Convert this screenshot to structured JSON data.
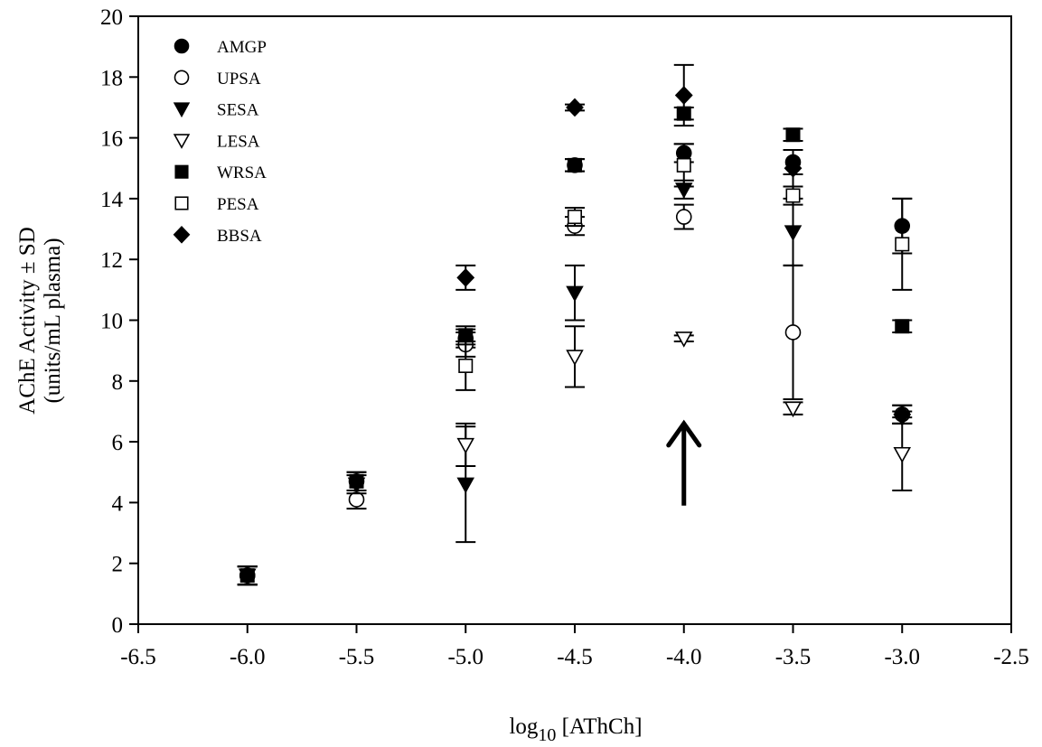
{
  "chart_data": {
    "type": "scatter",
    "title": "",
    "xlabel": {
      "prefix": "log",
      "subscript": "10",
      "suffix": " [AThCh]"
    },
    "ylabel": [
      "AChE Activity ± SD",
      "(units/mL plasma)"
    ],
    "xlim": [
      -6.5,
      -2.5
    ],
    "ylim": [
      0,
      20
    ],
    "xticks": [
      -6.5,
      -6.0,
      -5.5,
      -5.0,
      -4.5,
      -4.0,
      -3.5,
      -3.0,
      -2.5
    ],
    "xtick_labels": [
      "-6.5",
      "-6.0",
      "-5.5",
      "-5.0",
      "-4.5",
      "-4.0",
      "-3.5",
      "-3.0",
      "-2.5"
    ],
    "yticks": [
      0,
      2,
      4,
      6,
      8,
      10,
      12,
      14,
      16,
      18,
      20
    ],
    "ytick_labels": [
      "0",
      "2",
      "4",
      "6",
      "8",
      "10",
      "12",
      "14",
      "16",
      "18",
      "20"
    ],
    "grid": false,
    "legend_position": "top-left",
    "annotation": {
      "type": "arrow",
      "x": -4.0,
      "y_from": 3.9,
      "y_to": 6.6
    },
    "series": [
      {
        "name": "AMGP",
        "marker": "circle",
        "filled": true,
        "points": [
          {
            "x": -6.0,
            "y": 1.6,
            "sd": 0.3
          },
          {
            "x": -5.5,
            "y": 4.7,
            "sd": 0.3
          },
          {
            "x": -5.0,
            "y": 9.4,
            "sd": 0.3
          },
          {
            "x": -4.5,
            "y": 15.1,
            "sd": 0.2
          },
          {
            "x": -4.0,
            "y": 15.5,
            "sd": 0.3
          },
          {
            "x": -3.5,
            "y": 15.2,
            "sd": 0.4
          },
          {
            "x": -3.0,
            "y": 13.1,
            "sd": 0.9
          }
        ]
      },
      {
        "name": "UPSA",
        "marker": "circle",
        "filled": false,
        "points": [
          {
            "x": -6.0,
            "y": 1.6,
            "sd": 0.3
          },
          {
            "x": -5.5,
            "y": 4.1,
            "sd": 0.3
          },
          {
            "x": -5.0,
            "y": 9.2,
            "sd": 0.4
          },
          {
            "x": -4.5,
            "y": 13.1,
            "sd": 0.3
          },
          {
            "x": -4.0,
            "y": 13.4,
            "sd": 0.4
          },
          {
            "x": -3.5,
            "y": 9.6,
            "sd": 2.2
          },
          {
            "x": -3.0,
            "y": 6.9,
            "sd": 0.3
          }
        ]
      },
      {
        "name": "SESA",
        "marker": "triangle-down",
        "filled": true,
        "points": [
          {
            "x": -6.0,
            "y": 1.6,
            "sd": 0.3
          },
          {
            "x": -5.5,
            "y": 4.6,
            "sd": 0.3
          },
          {
            "x": -5.0,
            "y": 4.6,
            "sd": 1.9
          },
          {
            "x": -4.5,
            "y": 10.9,
            "sd": 0.9
          },
          {
            "x": -4.0,
            "y": 14.3,
            "sd": 0.3
          },
          {
            "x": -3.5,
            "y": 12.9,
            "sd": 1.1
          },
          {
            "x": -3.0,
            "y": 6.8,
            "sd": 0.2
          }
        ]
      },
      {
        "name": "LESA",
        "marker": "triangle-down",
        "filled": false,
        "points": [
          {
            "x": -6.0,
            "y": 1.6,
            "sd": 0.3
          },
          {
            "x": -5.0,
            "y": 5.9,
            "sd": 0.7
          },
          {
            "x": -4.5,
            "y": 8.8,
            "sd": 1.0
          },
          {
            "x": -4.0,
            "y": 9.4,
            "sd": 0.1
          },
          {
            "x": -3.5,
            "y": 7.1,
            "sd": 0.2
          },
          {
            "x": -3.0,
            "y": 5.6,
            "sd": 1.2
          }
        ]
      },
      {
        "name": "WRSA",
        "marker": "square",
        "filled": true,
        "points": [
          {
            "x": -6.0,
            "y": 1.6,
            "sd": 0.3
          },
          {
            "x": -5.5,
            "y": 4.7,
            "sd": 0.3
          },
          {
            "x": -5.0,
            "y": 9.5,
            "sd": 0.3
          },
          {
            "x": -4.5,
            "y": 15.1,
            "sd": 0.2
          },
          {
            "x": -4.0,
            "y": 16.8,
            "sd": 0.2
          },
          {
            "x": -3.5,
            "y": 16.1,
            "sd": 0.2
          },
          {
            "x": -3.0,
            "y": 9.8,
            "sd": 0.2
          }
        ]
      },
      {
        "name": "PESA",
        "marker": "square",
        "filled": false,
        "points": [
          {
            "x": -5.0,
            "y": 8.5,
            "sd": 0.8
          },
          {
            "x": -4.5,
            "y": 13.4,
            "sd": 0.3
          },
          {
            "x": -4.0,
            "y": 15.1,
            "sd": 0.7
          },
          {
            "x": -3.5,
            "y": 14.1,
            "sd": 0.3
          },
          {
            "x": -3.0,
            "y": 12.5,
            "sd": 1.5
          }
        ]
      },
      {
        "name": "BBSA",
        "marker": "diamond",
        "filled": true,
        "points": [
          {
            "x": -5.0,
            "y": 11.4,
            "sd": 0.4
          },
          {
            "x": -4.5,
            "y": 17.0,
            "sd": 0.1
          },
          {
            "x": -4.0,
            "y": 17.4,
            "sd": 1.0
          },
          {
            "x": -3.5,
            "y": 15.0,
            "sd": 0.6
          },
          {
            "x": -3.0,
            "y": 6.9,
            "sd": 0.3
          }
        ]
      }
    ]
  }
}
